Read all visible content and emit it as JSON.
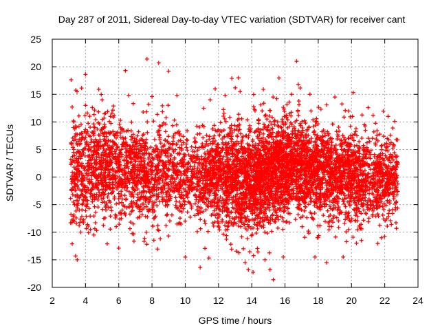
{
  "chart_data": {
    "type": "scatter",
    "title": "Day 287 of 2011, Sidereal Day-to-day VTEC variation (SDTVAR) for receiver cant",
    "xlabel": "GPS time / hours",
    "ylabel": "SDTVAR / TECUs",
    "xlim": [
      2,
      24
    ],
    "ylim": [
      -20,
      25
    ],
    "xticks": [
      2,
      4,
      6,
      8,
      10,
      12,
      14,
      16,
      18,
      20,
      22,
      24
    ],
    "yticks": [
      -20,
      -15,
      -10,
      -5,
      0,
      5,
      10,
      15,
      20,
      25
    ],
    "xtick_labels": [
      "2",
      "4",
      "6",
      "8",
      "10",
      "12",
      "14",
      "16",
      "18",
      "20",
      "22",
      "24"
    ],
    "ytick_labels": [
      "-20",
      "-15",
      "-10",
      "-5",
      "0",
      "5",
      "10",
      "15",
      "20",
      "25"
    ],
    "grid": true,
    "marker": "plus",
    "series": [
      {
        "name": "SDTVAR",
        "color": "#ff0000",
        "points": [
          [
            3.2,
            12.7
          ],
          [
            3.3,
            10.0
          ],
          [
            3.2,
            -12.1
          ],
          [
            3.4,
            -14.3
          ],
          [
            3.5,
            -15.0
          ],
          [
            4.0,
            18.6
          ],
          [
            4.0,
            13.0
          ],
          [
            4.1,
            8.0
          ],
          [
            4.3,
            -9.5
          ],
          [
            4.5,
            -10.5
          ],
          [
            4.8,
            15.9
          ],
          [
            5.0,
            14.0
          ],
          [
            5.1,
            -7.5
          ],
          [
            5.5,
            11.0
          ],
          [
            6.0,
            -12.9
          ],
          [
            6.4,
            19.3
          ],
          [
            6.6,
            14.8
          ],
          [
            6.9,
            -10.3
          ],
          [
            7.7,
            21.4
          ],
          [
            7.8,
            13.2
          ],
          [
            8.0,
            14.6
          ],
          [
            8.4,
            20.7
          ],
          [
            8.5,
            -11.2
          ],
          [
            9.0,
            19.2
          ],
          [
            9.5,
            14.8
          ],
          [
            10.0,
            -14.5
          ],
          [
            10.9,
            -16.4
          ],
          [
            11.5,
            14.0
          ],
          [
            11.8,
            16.0
          ],
          [
            12.4,
            14.8
          ],
          [
            12.8,
            17.9
          ],
          [
            13.2,
            18.0
          ],
          [
            13.3,
            15.5
          ],
          [
            13.5,
            -13.0
          ],
          [
            13.6,
            -15.5
          ],
          [
            13.8,
            -16.8
          ],
          [
            14.7,
            15.9
          ],
          [
            14.8,
            -15.0
          ],
          [
            15.1,
            -16.8
          ],
          [
            15.3,
            -18.6
          ],
          [
            15.5,
            14.2
          ],
          [
            15.9,
            -14.5
          ],
          [
            16.4,
            15.0
          ],
          [
            16.7,
            21.0
          ],
          [
            16.8,
            16.8
          ],
          [
            17.5,
            15.0
          ],
          [
            17.8,
            -14.5
          ],
          [
            18.5,
            -15.5
          ],
          [
            19.0,
            14.5
          ],
          [
            19.5,
            -14.5
          ],
          [
            20.1,
            15.3
          ],
          [
            20.3,
            -12.0
          ],
          [
            21.0,
            12.6
          ],
          [
            21.3,
            11.2
          ],
          [
            21.8,
            -11.0
          ],
          [
            22.2,
            11.0
          ],
          [
            22.4,
            -8.6
          ],
          [
            22.6,
            10.1
          ],
          [
            22.7,
            -9.3
          ],
          [
            22.6,
            0.5
          ]
        ]
      }
    ],
    "density": {
      "description": "dense cloud of ~6000 readings between 3.1 and 22.8 hours",
      "x_range": [
        3.1,
        22.8
      ],
      "profile": [
        {
          "x": 3.1,
          "mean": 1.0,
          "spread": 4.8,
          "weight": 0.6
        },
        {
          "x": 5.0,
          "mean": 1.8,
          "spread": 4.8,
          "weight": 0.8
        },
        {
          "x": 7.0,
          "mean": 1.0,
          "spread": 4.5,
          "weight": 0.75
        },
        {
          "x": 9.0,
          "mean": 0.8,
          "spread": 4.2,
          "weight": 0.6
        },
        {
          "x": 10.5,
          "mean": 0.4,
          "spread": 3.6,
          "weight": 0.55
        },
        {
          "x": 12.0,
          "mean": 0.0,
          "spread": 4.2,
          "weight": 1.0
        },
        {
          "x": 13.5,
          "mean": -1.0,
          "spread": 4.8,
          "weight": 1.35
        },
        {
          "x": 15.0,
          "mean": 0.8,
          "spread": 4.8,
          "weight": 1.45
        },
        {
          "x": 16.5,
          "mean": 2.0,
          "spread": 4.4,
          "weight": 1.3
        },
        {
          "x": 18.0,
          "mean": 0.8,
          "spread": 4.3,
          "weight": 1.0
        },
        {
          "x": 19.5,
          "mean": 0.4,
          "spread": 4.2,
          "weight": 0.9
        },
        {
          "x": 21.0,
          "mean": -0.2,
          "spread": 4.0,
          "weight": 0.75
        },
        {
          "x": 22.8,
          "mean": 0.0,
          "spread": 3.6,
          "weight": 0.6
        }
      ],
      "count": 6000,
      "seed": 287
    }
  }
}
